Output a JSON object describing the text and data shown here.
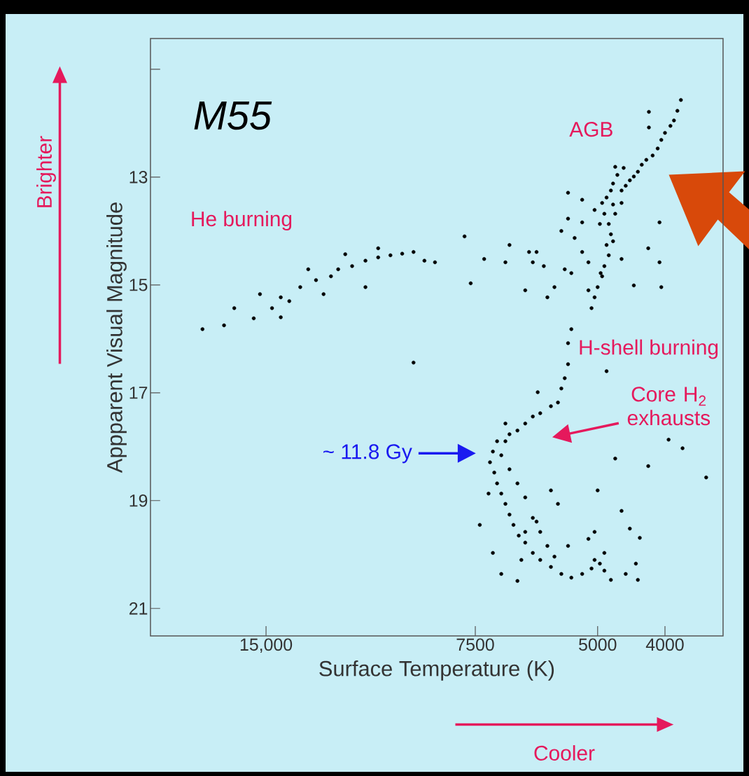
{
  "chart_data": {
    "type": "scatter",
    "title": "M55",
    "xlabel": "Surface Temperature (K)",
    "ylabel": "Appparent Visual Magnitude",
    "log": "x",
    "xlim": [
      22000,
      3300
    ],
    "ylim": [
      21.51,
      10.43
    ],
    "xticks": [
      {
        "value": 15000,
        "label": "15,000"
      },
      7500,
      5000,
      4000
    ],
    "yticks": [
      {
        "value": 11,
        "label": null
      },
      13,
      15,
      17,
      19,
      21
    ],
    "marker": "circle",
    "color": "#000000",
    "x": [
      3795,
      3839,
      3883,
      3929,
      4000,
      4049,
      4098,
      4167,
      4219,
      4219,
      4255,
      4320,
      4376,
      4435,
      4494,
      4556,
      4619,
      4717,
      4587,
      4684,
      4751,
      4785,
      4854,
      4926,
      4751,
      4619,
      5515,
      5263,
      5051,
      4890,
      4717,
      4963,
      4819,
      4785,
      4854,
      4751,
      4819,
      4890,
      4926,
      5000,
      5051,
      5102,
      5155,
      4950,
      5263,
      5515,
      5639,
      5396,
      5263,
      5155,
      5455,
      5769,
      5906,
      5576,
      4619,
      4435,
      4228,
      4073,
      4049,
      4073,
      4854,
      18519,
      17241,
      15625,
      14706,
      15306,
      14286,
      13393,
      12712,
      12097,
      11811,
      11278,
      10791,
      10345,
      9934,
      9554,
      9202,
      8876,
      8571,
      10345,
      13043,
      13889,
      12397,
      16667,
      14286,
      11538,
      10791,
      9202,
      7772,
      7614,
      7282,
      6787,
      6696,
      6276,
      6122,
      5976,
      6356,
      6198,
      5455,
      5515,
      5515,
      5576,
      5639,
      5703,
      5837,
      6048,
      6198,
      6356,
      6522,
      6696,
      6787,
      6098,
      6977,
      7075,
      7143,
      7042,
      6977,
      6881,
      6787,
      6696,
      6608,
      6494,
      6356,
      6198,
      6048,
      5837,
      5639,
      5455,
      5263,
      5102,
      5051,
      4963,
      4890,
      6881,
      6696,
      6522,
      6356,
      6198,
      6048,
      5906,
      5769,
      6356,
      7075,
      7389,
      6881,
      6522,
      5515,
      5155,
      4890,
      4785,
      4556,
      4376,
      5051,
      5000,
      4717,
      4494,
      4348,
      4405,
      5703,
      5837,
      6122,
      6438,
      7177,
      6787,
      3953,
      3774,
      3490,
      4228,
      4619
    ],
    "values": [
      11.57,
      11.77,
      11.95,
      12.05,
      12.18,
      12.31,
      12.47,
      12.6,
      11.79,
      12.08,
      12.68,
      12.77,
      12.9,
      12.99,
      13.06,
      13.16,
      13.25,
      12.81,
      12.83,
      12.96,
      13.12,
      13.25,
      13.38,
      13.48,
      13.51,
      13.48,
      13.29,
      13.42,
      13.61,
      13.68,
      13.68,
      13.87,
      13.87,
      14.06,
      14.26,
      14.19,
      14.45,
      14.65,
      14.84,
      15.04,
      15.23,
      15.43,
      15.1,
      14.78,
      13.84,
      13.77,
      14.0,
      14.13,
      14.39,
      14.58,
      14.78,
      15.04,
      15.23,
      14.71,
      14.52,
      15.01,
      14.32,
      13.84,
      15.04,
      14.58,
      16.6,
      15.82,
      15.75,
      15.62,
      15.43,
      15.17,
      15.23,
      15.04,
      14.91,
      14.84,
      14.71,
      14.65,
      14.55,
      14.49,
      14.45,
      14.42,
      14.39,
      14.55,
      14.58,
      14.32,
      14.71,
      15.3,
      15.17,
      15.43,
      15.6,
      14.43,
      15.04,
      16.44,
      14.1,
      14.97,
      14.52,
      14.58,
      14.26,
      14.39,
      14.39,
      14.65,
      15.1,
      14.58,
      15.82,
      16.08,
      16.47,
      16.73,
      16.92,
      17.18,
      17.25,
      17.38,
      17.44,
      17.57,
      17.7,
      17.77,
      17.9,
      16.99,
      17.9,
      18.09,
      18.29,
      18.48,
      18.68,
      18.87,
      19.06,
      19.26,
      19.45,
      19.65,
      19.78,
      19.97,
      20.1,
      20.23,
      20.36,
      20.43,
      20.36,
      20.26,
      20.1,
      20.17,
      20.3,
      18.16,
      18.42,
      18.68,
      18.94,
      19.32,
      19.58,
      19.84,
      20.04,
      19.58,
      19.97,
      19.45,
      20.36,
      20.49,
      19.84,
      19.71,
      19.97,
      20.47,
      20.36,
      20.47,
      19.58,
      18.81,
      18.22,
      19.52,
      19.69,
      20.17,
      19.06,
      18.81,
      19.39,
      20.1,
      18.87,
      17.57,
      17.87,
      18.03,
      18.57,
      18.36,
      19.19
    ],
    "annotations": [
      "He burning",
      "AGB",
      "H-shell burning",
      "~ 11.8 Gy",
      "Core H$_{2}$ exhausts",
      "Brighter",
      "Cooler"
    ]
  }
}
